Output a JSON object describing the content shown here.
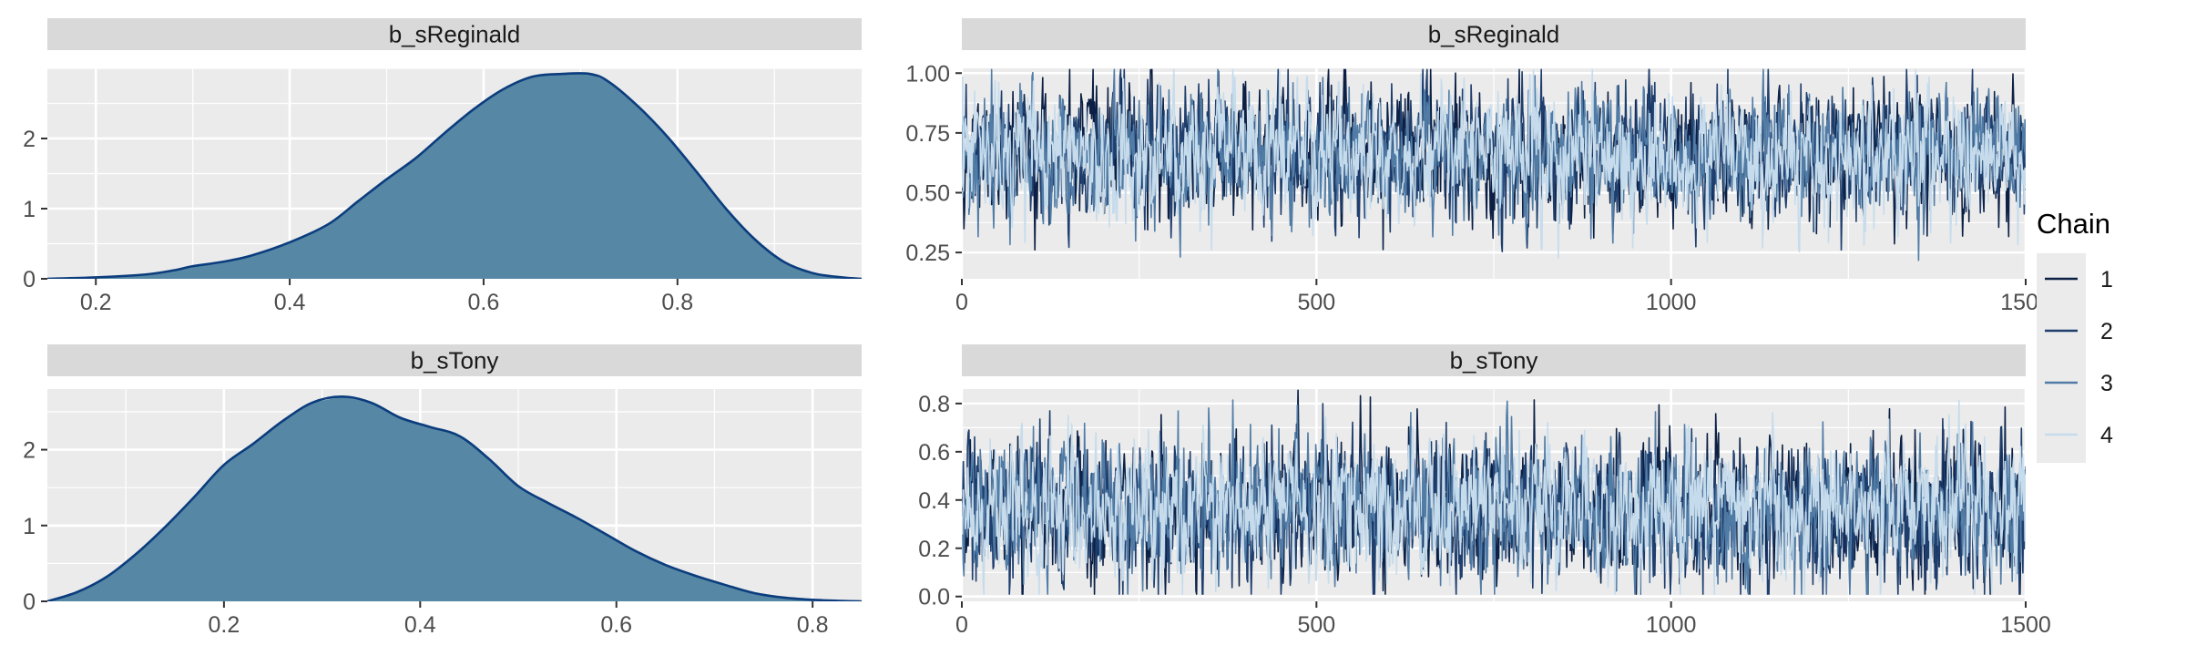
{
  "chart_data": [
    {
      "type": "area",
      "panel": "density",
      "title": "b_sReginald",
      "xlim": [
        0.15,
        0.99
      ],
      "ylim": [
        0,
        3.0
      ],
      "x_ticks": [
        0.2,
        0.4,
        0.6,
        0.8
      ],
      "x_tick_labels": [
        "0.2",
        "0.4",
        "0.6",
        "0.8"
      ],
      "y_ticks": [
        0,
        1,
        2
      ],
      "y_tick_labels": [
        "0",
        "1",
        "2"
      ],
      "fill_color": "#5687a4",
      "line_color": "#0b3d7e",
      "x": [
        0.15,
        0.2,
        0.25,
        0.28,
        0.3,
        0.33,
        0.36,
        0.4,
        0.44,
        0.47,
        0.5,
        0.53,
        0.56,
        0.59,
        0.62,
        0.65,
        0.68,
        0.71,
        0.73,
        0.76,
        0.79,
        0.82,
        0.85,
        0.88,
        0.91,
        0.94,
        0.97,
        0.99
      ],
      "y": [
        0.0,
        0.02,
        0.06,
        0.12,
        0.18,
        0.24,
        0.33,
        0.52,
        0.78,
        1.1,
        1.42,
        1.72,
        2.08,
        2.42,
        2.7,
        2.88,
        2.92,
        2.92,
        2.8,
        2.45,
        2.02,
        1.52,
        1.0,
        0.56,
        0.24,
        0.08,
        0.02,
        0.0
      ]
    },
    {
      "type": "line",
      "panel": "trace",
      "title": "b_sReginald",
      "xlim": [
        0,
        1500
      ],
      "ylim": [
        0.14,
        1.02
      ],
      "x_ticks": [
        0,
        500,
        1000,
        1500
      ],
      "x_tick_labels": [
        "0",
        "500",
        "1000",
        "1500"
      ],
      "y_ticks": [
        0.25,
        0.5,
        0.75,
        1.0
      ],
      "y_tick_labels": [
        "0.25",
        "0.50",
        "0.75",
        "1.00"
      ],
      "draws_per_chain": 1500,
      "mean": 0.66,
      "sd": 0.13,
      "series": [
        {
          "name": "1",
          "color": "#0c2045",
          "seed": 11
        },
        {
          "name": "2",
          "color": "#1e3e6e",
          "seed": 23
        },
        {
          "name": "3",
          "color": "#517ca6",
          "seed": 37
        },
        {
          "name": "4",
          "color": "#c6dcec",
          "seed": 53
        }
      ]
    },
    {
      "type": "area",
      "panel": "density",
      "title": "b_sTony",
      "xlim": [
        0.02,
        0.85
      ],
      "ylim": [
        0,
        2.8
      ],
      "x_ticks": [
        0.2,
        0.4,
        0.6,
        0.8
      ],
      "x_tick_labels": [
        "0.2",
        "0.4",
        "0.6",
        "0.8"
      ],
      "y_ticks": [
        0,
        1,
        2
      ],
      "y_tick_labels": [
        "0",
        "1",
        "2"
      ],
      "fill_color": "#5687a4",
      "line_color": "#0b3d7e",
      "x": [
        0.02,
        0.05,
        0.08,
        0.11,
        0.14,
        0.17,
        0.2,
        0.23,
        0.26,
        0.29,
        0.32,
        0.35,
        0.38,
        0.41,
        0.44,
        0.47,
        0.5,
        0.53,
        0.56,
        0.59,
        0.62,
        0.65,
        0.68,
        0.71,
        0.74,
        0.77,
        0.8,
        0.83,
        0.85
      ],
      "y": [
        0.0,
        0.12,
        0.32,
        0.62,
        0.98,
        1.38,
        1.8,
        2.08,
        2.38,
        2.62,
        2.7,
        2.62,
        2.42,
        2.3,
        2.18,
        1.88,
        1.52,
        1.3,
        1.1,
        0.88,
        0.66,
        0.48,
        0.34,
        0.22,
        0.11,
        0.05,
        0.02,
        0.005,
        0.0
      ]
    },
    {
      "type": "line",
      "panel": "trace",
      "title": "b_sTony",
      "xlim": [
        0,
        1500
      ],
      "ylim": [
        -0.02,
        0.86
      ],
      "x_ticks": [
        0,
        500,
        1000,
        1500
      ],
      "x_tick_labels": [
        "0",
        "500",
        "1000",
        "1500"
      ],
      "y_ticks": [
        0.0,
        0.2,
        0.4,
        0.6,
        0.8
      ],
      "y_tick_labels": [
        "0.0",
        "0.2",
        "0.4",
        "0.6",
        "0.8"
      ],
      "draws_per_chain": 1500,
      "mean": 0.36,
      "sd": 0.145,
      "series": [
        {
          "name": "1",
          "color": "#0c2045",
          "seed": 71
        },
        {
          "name": "2",
          "color": "#1e3e6e",
          "seed": 89
        },
        {
          "name": "3",
          "color": "#517ca6",
          "seed": 97
        },
        {
          "name": "4",
          "color": "#c6dcec",
          "seed": 113
        }
      ]
    }
  ],
  "legend": {
    "title": "Chain",
    "items": [
      {
        "label": "1",
        "color": "#0c2045"
      },
      {
        "label": "2",
        "color": "#1e3e6e"
      },
      {
        "label": "3",
        "color": "#517ca6"
      },
      {
        "label": "4",
        "color": "#c6dcec"
      }
    ]
  },
  "theme": {
    "panel_background": "#ebebeb",
    "strip_background": "#d9d9d9",
    "grid_color": "#ffffff"
  }
}
